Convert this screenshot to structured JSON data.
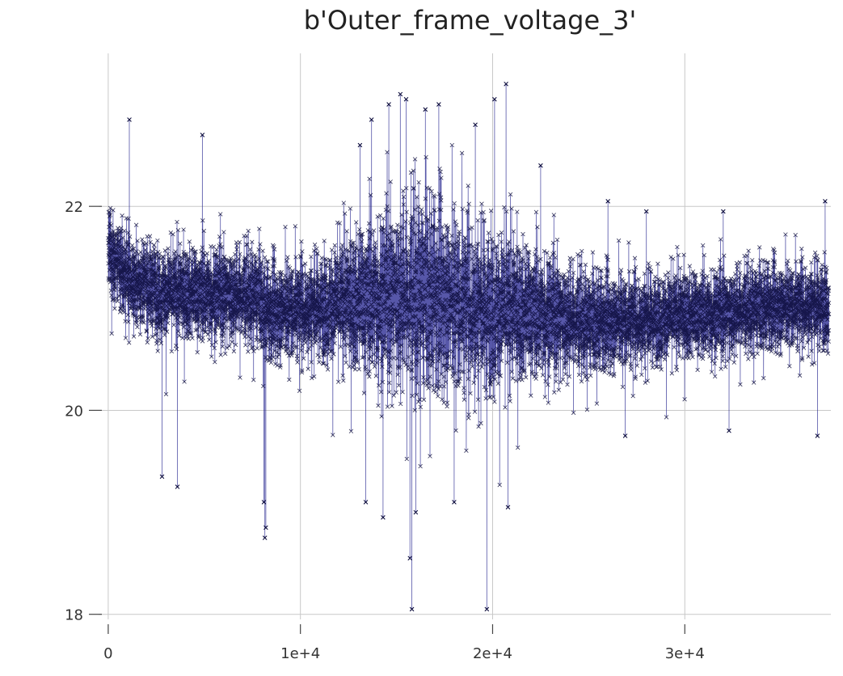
{
  "chart_data": {
    "type": "line",
    "title": "b'Outer_frame_voltage_3'",
    "xlabel": "",
    "ylabel": "",
    "xlim": [
      -500,
      37600
    ],
    "ylim": [
      17.95,
      23.5
    ],
    "x_ticks": [
      0,
      10000,
      20000,
      30000
    ],
    "x_tick_labels": [
      "0",
      "1e+4",
      "2e+4",
      "3e+4"
    ],
    "y_ticks": [
      18,
      20,
      22
    ],
    "y_tick_labels": [
      "18",
      "20",
      "22"
    ],
    "grid": true,
    "marker": "x",
    "line_color": "#1f1f8c",
    "marker_color": "#0b0b3b",
    "series": [
      {
        "x_start": 0,
        "x_end": 37500,
        "n_points": 37500,
        "mean_profile": [
          [
            0,
            21.55
          ],
          [
            1000,
            21.3
          ],
          [
            3000,
            21.15
          ],
          [
            6000,
            21.15
          ],
          [
            7900,
            21.1
          ],
          [
            8200,
            20.95
          ],
          [
            10000,
            21.0
          ],
          [
            12000,
            21.05
          ],
          [
            15000,
            21.15
          ],
          [
            17000,
            21.1
          ],
          [
            20000,
            21.0
          ],
          [
            23000,
            20.95
          ],
          [
            25000,
            20.85
          ],
          [
            28000,
            20.9
          ],
          [
            31000,
            20.95
          ],
          [
            34000,
            21.0
          ],
          [
            37500,
            21.05
          ]
        ],
        "spread_profile": [
          [
            0,
            0.3
          ],
          [
            5000,
            0.32
          ],
          [
            8000,
            0.34
          ],
          [
            11000,
            0.36
          ],
          [
            14000,
            0.55
          ],
          [
            16000,
            0.7
          ],
          [
            19000,
            0.62
          ],
          [
            22000,
            0.45
          ],
          [
            25000,
            0.35
          ],
          [
            30000,
            0.3
          ],
          [
            37500,
            0.3
          ]
        ],
        "extremes": [
          {
            "x": 1100,
            "y": 22.85
          },
          {
            "x": 4900,
            "y": 22.7
          },
          {
            "x": 2800,
            "y": 19.35
          },
          {
            "x": 3600,
            "y": 19.25
          },
          {
            "x": 8150,
            "y": 18.75
          },
          {
            "x": 8200,
            "y": 18.85
          },
          {
            "x": 8100,
            "y": 19.1
          },
          {
            "x": 13100,
            "y": 22.6
          },
          {
            "x": 13700,
            "y": 22.85
          },
          {
            "x": 14600,
            "y": 23.0
          },
          {
            "x": 15200,
            "y": 23.1
          },
          {
            "x": 15500,
            "y": 23.05
          },
          {
            "x": 16500,
            "y": 22.95
          },
          {
            "x": 17200,
            "y": 23.0
          },
          {
            "x": 15800,
            "y": 18.05
          },
          {
            "x": 15700,
            "y": 18.55
          },
          {
            "x": 13400,
            "y": 19.1
          },
          {
            "x": 14300,
            "y": 18.95
          },
          {
            "x": 16000,
            "y": 19.0
          },
          {
            "x": 19100,
            "y": 22.8
          },
          {
            "x": 20700,
            "y": 23.2
          },
          {
            "x": 20100,
            "y": 23.05
          },
          {
            "x": 19700,
            "y": 18.05
          },
          {
            "x": 20800,
            "y": 19.05
          },
          {
            "x": 18000,
            "y": 19.1
          },
          {
            "x": 22500,
            "y": 22.4
          },
          {
            "x": 26000,
            "y": 22.05
          },
          {
            "x": 28000,
            "y": 21.95
          },
          {
            "x": 32000,
            "y": 21.95
          },
          {
            "x": 37300,
            "y": 22.05
          },
          {
            "x": 36900,
            "y": 19.75
          },
          {
            "x": 32300,
            "y": 19.8
          },
          {
            "x": 26900,
            "y": 19.75
          }
        ]
      }
    ]
  }
}
